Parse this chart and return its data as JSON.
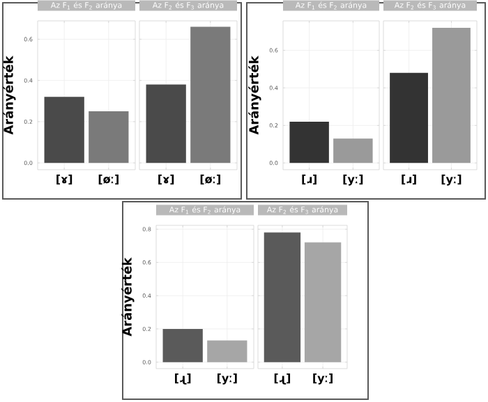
{
  "chart_data": [
    {
      "type": "bar",
      "title": "Az F$_{1}$ és F$_{2}$ aránya",
      "ylabel": "Arányérték",
      "categories": [
        "[ɤ]",
        "[øː]"
      ],
      "values": [
        0.32,
        0.25
      ],
      "colors": [
        "#4a4a4a",
        "#7a7a7a"
      ],
      "ylim": [
        -0.033,
        0.689
      ],
      "yticks": [
        {
          "value": 0,
          "label": "0.0"
        },
        {
          "value": 0.2,
          "label": "0.2"
        },
        {
          "value": 0.4,
          "label": "0.4"
        },
        {
          "value": 0.6,
          "label": "0.6"
        }
      ],
      "grid": true
    },
    {
      "type": "bar",
      "title": "Az F$_{2}$ és F$_{3}$ aránya",
      "categories": [
        "[ɤ]",
        "[øː]"
      ],
      "values": [
        0.38,
        0.66
      ],
      "colors": [
        "#4a4a4a",
        "#7a7a7a"
      ],
      "ylim": [
        -0.033,
        0.689
      ],
      "yticks": [
        {
          "value": 0,
          "label": null
        },
        {
          "value": 0.2,
          "label": null
        },
        {
          "value": 0.4,
          "label": null
        },
        {
          "value": 0.6,
          "label": null
        }
      ],
      "grid": true,
      "tick_labels": "x"
    },
    {
      "type": "bar",
      "title": "Az F$_{1}$ és F$_{2}$ aránya",
      "ylabel": "Arányérték",
      "categories": [
        "[ɹ]",
        "[yː]"
      ],
      "values": [
        0.22,
        0.13
      ],
      "colors": [
        "#333333",
        "#9a9a9a"
      ],
      "ylim": [
        -0.036,
        0.757
      ],
      "yticks": [
        {
          "value": 0,
          "label": "0.0"
        },
        {
          "value": 0.2,
          "label": "0.2"
        },
        {
          "value": 0.4,
          "label": "0.4"
        },
        {
          "value": 0.6,
          "label": "0.6"
        }
      ],
      "grid": true
    },
    {
      "type": "bar",
      "title": "Az F$_{2}$ és F$_{3}$ aránya",
      "categories": [
        "[ɹ]",
        "[yː]"
      ],
      "values": [
        0.48,
        0.72
      ],
      "colors": [
        "#333333",
        "#9a9a9a"
      ],
      "ylim": [
        -0.036,
        0.757
      ],
      "yticks": [
        {
          "value": 0,
          "label": null
        },
        {
          "value": 0.2,
          "label": null
        },
        {
          "value": 0.4,
          "label": null
        },
        {
          "value": 0.6,
          "label": null
        }
      ],
      "grid": true,
      "tick_labels": "x"
    },
    {
      "type": "bar",
      "title": "Az F$_{1}$ és F$_{2}$ aránya",
      "ylabel": "Arányérték",
      "categories": [
        "[ɻ]",
        "[yː]"
      ],
      "values": [
        0.2,
        0.13
      ],
      "colors": [
        "#5a5a5a",
        "#a6a6a6"
      ],
      "ylim": [
        -0.039,
        0.823
      ],
      "yticks": [
        {
          "value": 0,
          "label": "0.0"
        },
        {
          "value": 0.2,
          "label": "0.2"
        },
        {
          "value": 0.4,
          "label": "0.4"
        },
        {
          "value": 0.6,
          "label": "0.6"
        },
        {
          "value": 0.8,
          "label": "0.8"
        }
      ],
      "grid": true
    },
    {
      "type": "bar",
      "title": "Az F$_{2}$ és F$_{3}$ aránya",
      "categories": [
        "[ɻ]",
        "[yː]"
      ],
      "values": [
        0.78,
        0.72
      ],
      "colors": [
        "#5a5a5a",
        "#a6a6a6"
      ],
      "ylim": [
        -0.039,
        0.823
      ],
      "yticks": [
        {
          "value": 0,
          "label": null
        },
        {
          "value": 0.2,
          "label": null
        },
        {
          "value": 0.4,
          "label": null
        },
        {
          "value": 0.6,
          "label": null
        },
        {
          "value": 0.8,
          "label": null
        }
      ],
      "grid": true,
      "tick_labels": "x"
    }
  ]
}
